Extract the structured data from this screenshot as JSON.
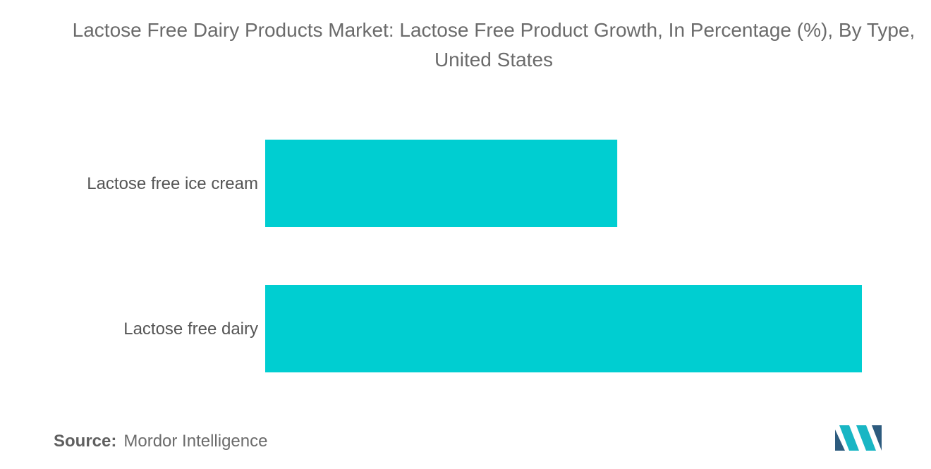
{
  "title": "Lactose Free Dairy Products Market: Lactose Free Product Growth, In Percentage (%), By Type, United States",
  "source": {
    "label": "Source:",
    "value": "Mordor Intelligence"
  },
  "colors": {
    "bar": "#00CED1",
    "logo_dark": "#2d5b7e",
    "logo_teal": "#19b6c4"
  },
  "logo_icon": "mordor-intelligence-logo-icon",
  "chart_data": {
    "type": "bar",
    "orientation": "horizontal",
    "title": "Lactose Free Dairy Products Market: Lactose Free Product Growth, In Percentage (%), By Type, United States",
    "categories": [
      "Lactose free ice cream",
      "Lactose free dairy"
    ],
    "values": [
      5.9,
      10
    ],
    "xlim": [
      0,
      10
    ],
    "xlabel": "",
    "ylabel": "",
    "grid": false,
    "legend": "none"
  }
}
